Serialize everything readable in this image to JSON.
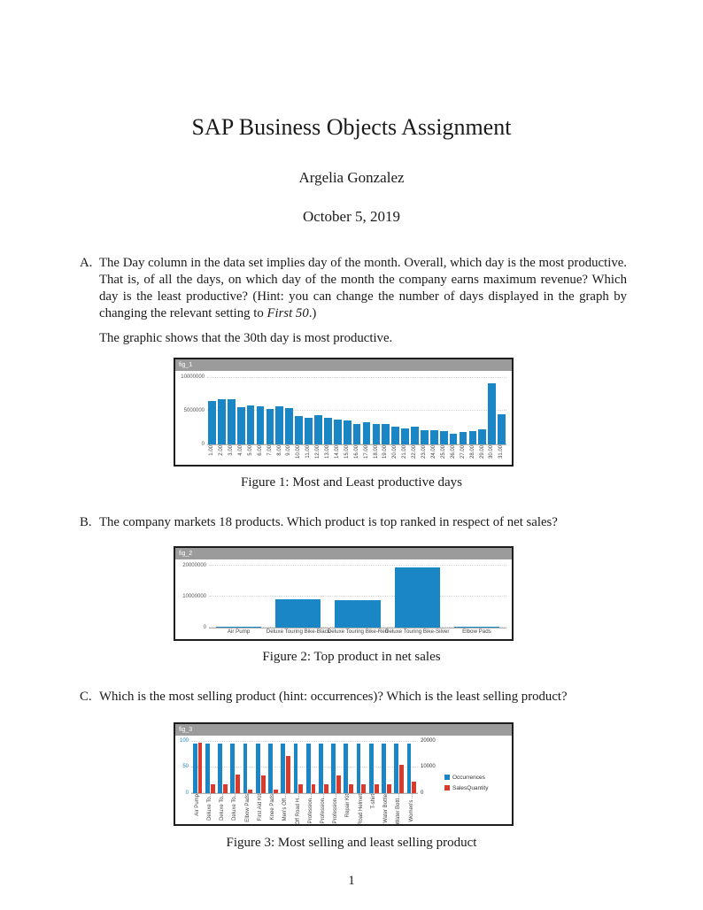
{
  "document": {
    "title": "SAP Business Objects Assignment",
    "author": "Argelia Gonzalez",
    "date": "October 5, 2019",
    "page_number": "1"
  },
  "items": {
    "a": {
      "label": "A.",
      "text": "The Day column in the data set implies day of the month. Overall, which day is the most productive. That is, of all the days, on which day of the month the company earns maximum revenue? Which day is the least productive? (Hint: you can change the number of days displayed in the graph by changing the relevant setting to ",
      "italic": "First 50",
      "tail": ".)",
      "answer": "The graphic shows that the 30th day is most productive."
    },
    "b": {
      "label": "B.",
      "text": "The company markets 18 products. Which product is top ranked in respect of net sales?"
    },
    "c": {
      "label": "C.",
      "text": "Which is the most selling product (hint: occurrences)? Which is the least selling product?"
    }
  },
  "figures": [
    {
      "header": "fig_1",
      "caption": "Figure 1: Most and Least productive days"
    },
    {
      "header": "fig_2",
      "caption": "Figure 2: Top product in net sales"
    },
    {
      "header": "fig_3",
      "caption": "Figure 3: Most selling and least selling product"
    }
  ],
  "colors": {
    "bar_blue": "#1b86c6",
    "bar_red": "#d93a2b",
    "widget_header_gray": "#9b9b9b"
  },
  "chart_data": [
    {
      "type": "bar",
      "title": "fig_1",
      "categories": [
        "1.00",
        "2.00",
        "3.00",
        "4.00",
        "5.00",
        "6.00",
        "7.00",
        "8.00",
        "9.00",
        "10.00",
        "11.00",
        "12.00",
        "13.00",
        "14.00",
        "15.00",
        "16.00",
        "17.00",
        "18.00",
        "19.00",
        "20.00",
        "21.00",
        "22.00",
        "23.00",
        "24.00",
        "25.00",
        "26.00",
        "27.00",
        "28.00",
        "29.00",
        "30.00",
        "31.00"
      ],
      "values": [
        6500000,
        6800000,
        6800000,
        5600000,
        5900000,
        5700000,
        5300000,
        5700000,
        5400000,
        4300000,
        4000000,
        4400000,
        4000000,
        3700000,
        3600000,
        3000000,
        3300000,
        3100000,
        3000000,
        2700000,
        2400000,
        2600000,
        2100000,
        2100000,
        2000000,
        1600000,
        1800000,
        2000000,
        2300000,
        9200000,
        4500000
      ],
      "xlabel": "",
      "ylabel": "",
      "yticks": [
        0,
        5000000,
        10000000
      ],
      "ylim": [
        0,
        10500000
      ],
      "bar_color": "#1b86c6",
      "x_labels_rotated": true,
      "grid": true,
      "legend_position": "none"
    },
    {
      "type": "bar",
      "title": "fig_2",
      "categories": [
        "Air Pump",
        "Deluxe Touring Bike-Black",
        "Deluxe Touring Bike-Red",
        "Deluxe Touring Bike-Silver",
        "Elbow Pads"
      ],
      "values": [
        300000,
        9200000,
        8800000,
        19700000,
        150000
      ],
      "xlabel": "",
      "ylabel": "",
      "yticks": [
        0,
        10000000,
        20000000
      ],
      "ylim": [
        0,
        21000000
      ],
      "bar_color": "#1b86c6",
      "x_labels_rotated": false,
      "grid": true,
      "legend_position": "none"
    },
    {
      "type": "bar",
      "title": "fig_3",
      "categories": [
        "Air Pump",
        "Deluxe To..",
        "Deluxe To..",
        "Deluxe To..",
        "Elbow Pads",
        "First Aid Kit",
        "Knee Pads",
        "Men's Off...",
        "Off Road H...",
        "Profession...",
        "Profession...",
        "Profession...",
        "Repair Kit",
        "Road Helmet",
        "T-shirt",
        "Water Bottle",
        "Water Bottl...",
        "Women's ..."
      ],
      "series": [
        {
          "name": "Occurrences",
          "axis": "left",
          "color": "#1b86c6",
          "values": [
            97,
            97,
            97,
            97,
            97,
            97,
            97,
            97,
            97,
            97,
            97,
            97,
            97,
            97,
            97,
            97,
            97,
            97
          ]
        },
        {
          "name": "SalesQuantity",
          "axis": "right",
          "color": "#d93a2b",
          "values": [
            19500,
            3300,
            3300,
            7300,
            1500,
            7000,
            1500,
            14500,
            3300,
            3500,
            3300,
            7000,
            3300,
            3300,
            3500,
            3500,
            11000,
            4500
          ]
        }
      ],
      "axes": {
        "left": {
          "ticks": [
            0,
            50,
            100
          ],
          "max": 105,
          "tick_color": "#1b86c6"
        },
        "right": {
          "ticks": [
            0,
            10000,
            20000
          ],
          "max": 21000,
          "tick_color": "#333333"
        }
      },
      "xlabel": "",
      "ylabel": "",
      "x_labels_rotated": true,
      "grid": true,
      "legend_position": "right",
      "legend": [
        {
          "label": "Occurrences",
          "color": "#1b86c6"
        },
        {
          "label": "SalesQuantity",
          "color": "#d93a2b"
        }
      ]
    }
  ]
}
